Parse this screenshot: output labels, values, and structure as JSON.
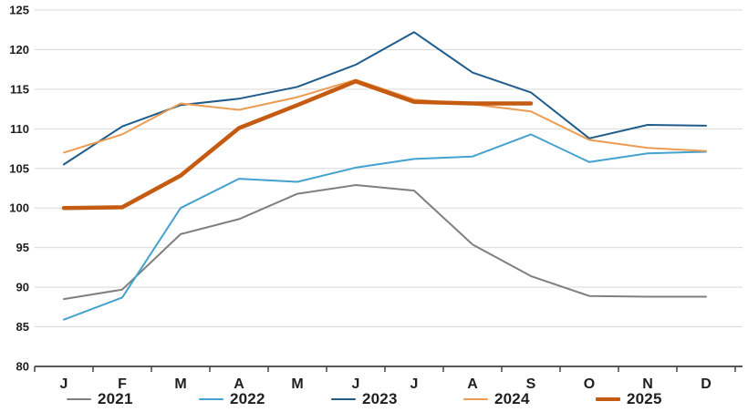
{
  "chart_data": {
    "type": "line",
    "title": "",
    "xlabel": "",
    "ylabel": "",
    "categories": [
      "J",
      "F",
      "M",
      "A",
      "M",
      "J",
      "J",
      "A",
      "S",
      "O",
      "N",
      "D"
    ],
    "ylim": [
      80,
      125
    ],
    "yticks": [
      80,
      85,
      90,
      95,
      100,
      105,
      110,
      115,
      120,
      125
    ],
    "grid": true,
    "legend_position": "bottom",
    "colors": {
      "gridline": "#D9D9D9",
      "axis_line": "#404040",
      "tick_text": "#1f1f1f",
      "background": "#ffffff"
    },
    "series": [
      {
        "name": "2021",
        "color": "#7F7F7F",
        "stroke_width": 2,
        "values": [
          88.5,
          89.7,
          96.7,
          98.6,
          101.8,
          102.9,
          102.2,
          95.4,
          91.4,
          88.9,
          88.8,
          88.8
        ]
      },
      {
        "name": "2022",
        "color": "#45A2CF",
        "stroke_width": 2,
        "values": [
          85.9,
          88.7,
          100.0,
          103.7,
          103.3,
          105.1,
          106.2,
          106.5,
          109.3,
          105.8,
          106.9,
          107.1
        ]
      },
      {
        "name": "2023",
        "color": "#1F5C8B",
        "stroke_width": 2,
        "values": [
          105.5,
          110.3,
          113.0,
          113.8,
          115.3,
          118.1,
          122.2,
          117.1,
          114.6,
          108.8,
          110.5,
          110.4
        ]
      },
      {
        "name": "2024",
        "color": "#EC9C52",
        "stroke_width": 2,
        "values": [
          107.0,
          109.3,
          113.2,
          112.4,
          114.0,
          116.2,
          113.7,
          113.1,
          112.2,
          108.6,
          107.6,
          107.2
        ]
      },
      {
        "name": "2025",
        "color": "#C55A11",
        "stroke_width": 4.5,
        "values": [
          100.0,
          100.1,
          104.1,
          110.1,
          113.0,
          116.0,
          113.4,
          113.2,
          113.2,
          null,
          null,
          null
        ]
      }
    ]
  },
  "legend": {
    "items": [
      {
        "label": "2021"
      },
      {
        "label": "2022"
      },
      {
        "label": "2023"
      },
      {
        "label": "2024"
      },
      {
        "label": "2025"
      }
    ]
  }
}
